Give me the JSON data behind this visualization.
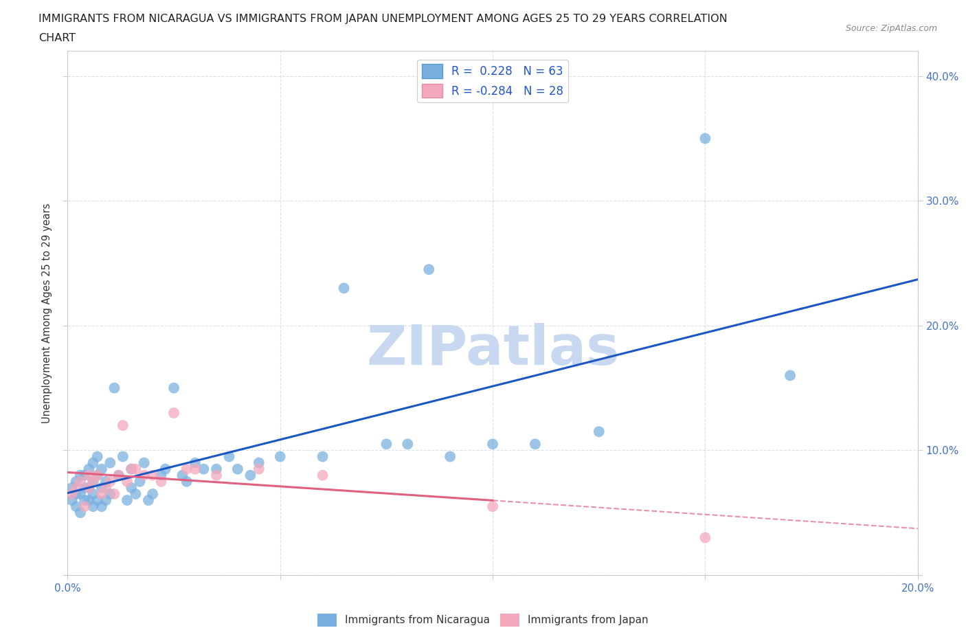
{
  "title_line1": "IMMIGRANTS FROM NICARAGUA VS IMMIGRANTS FROM JAPAN UNEMPLOYMENT AMONG AGES 25 TO 29 YEARS CORRELATION",
  "title_line2": "CHART",
  "source_text": "Source: ZipAtlas.com",
  "ylabel": "Unemployment Among Ages 25 to 29 years",
  "xlim": [
    0.0,
    0.2
  ],
  "ylim": [
    0.0,
    0.42
  ],
  "x_ticks": [
    0.0,
    0.05,
    0.1,
    0.15,
    0.2
  ],
  "y_ticks": [
    0.0,
    0.1,
    0.2,
    0.3,
    0.4
  ],
  "nicaragua_color": "#7ab0e0",
  "japan_color": "#f4a8bc",
  "nicaragua_line_color": "#1a56c4",
  "japan_line_color": "#e06080",
  "nicaragua_R": 0.228,
  "nicaragua_N": 63,
  "japan_R": -0.284,
  "japan_N": 28,
  "nicaragua_scatter_x": [
    0.001,
    0.001,
    0.002,
    0.002,
    0.002,
    0.003,
    0.003,
    0.003,
    0.004,
    0.004,
    0.004,
    0.005,
    0.005,
    0.005,
    0.006,
    0.006,
    0.006,
    0.006,
    0.007,
    0.007,
    0.007,
    0.008,
    0.008,
    0.008,
    0.009,
    0.009,
    0.01,
    0.01,
    0.011,
    0.012,
    0.013,
    0.014,
    0.015,
    0.015,
    0.016,
    0.017,
    0.018,
    0.019,
    0.02,
    0.022,
    0.023,
    0.025,
    0.027,
    0.028,
    0.03,
    0.032,
    0.035,
    0.038,
    0.04,
    0.043,
    0.045,
    0.05,
    0.06,
    0.065,
    0.075,
    0.08,
    0.085,
    0.09,
    0.1,
    0.11,
    0.125,
    0.15,
    0.17
  ],
  "nicaragua_scatter_y": [
    0.06,
    0.07,
    0.055,
    0.065,
    0.075,
    0.05,
    0.065,
    0.08,
    0.06,
    0.07,
    0.08,
    0.06,
    0.07,
    0.085,
    0.055,
    0.065,
    0.075,
    0.09,
    0.06,
    0.08,
    0.095,
    0.055,
    0.07,
    0.085,
    0.06,
    0.075,
    0.065,
    0.09,
    0.15,
    0.08,
    0.095,
    0.06,
    0.07,
    0.085,
    0.065,
    0.075,
    0.09,
    0.06,
    0.065,
    0.08,
    0.085,
    0.15,
    0.08,
    0.075,
    0.09,
    0.085,
    0.085,
    0.095,
    0.085,
    0.08,
    0.09,
    0.095,
    0.095,
    0.23,
    0.105,
    0.105,
    0.245,
    0.095,
    0.105,
    0.105,
    0.115,
    0.35,
    0.16
  ],
  "japan_scatter_x": [
    0.001,
    0.002,
    0.003,
    0.004,
    0.005,
    0.005,
    0.006,
    0.007,
    0.008,
    0.009,
    0.01,
    0.011,
    0.012,
    0.013,
    0.014,
    0.015,
    0.016,
    0.018,
    0.02,
    0.022,
    0.025,
    0.028,
    0.03,
    0.035,
    0.045,
    0.06,
    0.1,
    0.15
  ],
  "japan_scatter_y": [
    0.065,
    0.07,
    0.075,
    0.055,
    0.07,
    0.08,
    0.075,
    0.08,
    0.065,
    0.07,
    0.075,
    0.065,
    0.08,
    0.12,
    0.075,
    0.085,
    0.085,
    0.08,
    0.08,
    0.075,
    0.13,
    0.085,
    0.085,
    0.08,
    0.085,
    0.08,
    0.055,
    0.03
  ],
  "watermark_text": "ZIPatlas",
  "watermark_color": "#c8d8f0",
  "figsize": [
    14.06,
    9.3
  ],
  "dpi": 100
}
